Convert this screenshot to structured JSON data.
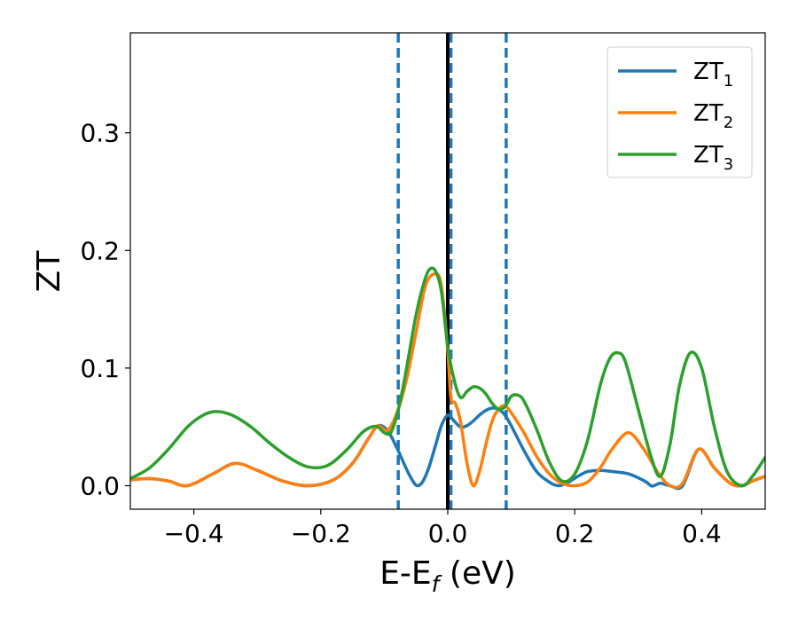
{
  "chart_data": {
    "type": "line",
    "xlabel": "E-E",
    "xlabel_sub": "f",
    "xlabel_unit": " (eV)",
    "ylabel": "ZT",
    "xlim": [
      -0.5,
      0.5
    ],
    "ylim": [
      -0.02,
      0.385
    ],
    "x_ticks": [
      -0.4,
      -0.2,
      0.0,
      0.2,
      0.4
    ],
    "x_tick_labels": [
      "−0.4",
      "−0.2",
      "0.0",
      "0.2",
      "0.4"
    ],
    "y_ticks": [
      0.0,
      0.1,
      0.2,
      0.3
    ],
    "y_tick_labels": [
      "0.0",
      "0.1",
      "0.2",
      "0.3"
    ],
    "grid": false,
    "legend_position": "top-right",
    "vertical_lines": [
      {
        "x": -0.078,
        "style": "dashed",
        "color": "#1f77b4"
      },
      {
        "x": 0.0,
        "style": "solid",
        "color": "#000000"
      },
      {
        "x": 0.005,
        "style": "dashed",
        "color": "#1f77b4"
      },
      {
        "x": 0.092,
        "style": "dashed",
        "color": "#1f77b4"
      }
    ],
    "series": [
      {
        "name": "ZT",
        "sub": "1",
        "color": "#1f77b4",
        "x": [
          -0.5,
          -0.47,
          -0.44,
          -0.41,
          -0.37,
          -0.335,
          -0.3,
          -0.26,
          -0.22,
          -0.18,
          -0.15,
          -0.125,
          -0.11,
          -0.095,
          -0.08,
          -0.065,
          -0.055,
          -0.048,
          -0.04,
          -0.03,
          -0.02,
          -0.01,
          0.0,
          0.01,
          0.02,
          0.03,
          0.04,
          0.05,
          0.06,
          0.07,
          0.08,
          0.09,
          0.1,
          0.12,
          0.14,
          0.16,
          0.175,
          0.19,
          0.205,
          0.22,
          0.24,
          0.26,
          0.285,
          0.31,
          0.32,
          0.325,
          0.335,
          0.35,
          0.37,
          0.395,
          0.42,
          0.445,
          0.463,
          0.48,
          0.5
        ],
        "y": [
          0.005,
          0.006,
          0.004,
          0.0,
          0.01,
          0.019,
          0.013,
          0.004,
          0.0,
          0.005,
          0.019,
          0.04,
          0.051,
          0.047,
          0.032,
          0.014,
          0.004,
          0.0,
          0.003,
          0.015,
          0.033,
          0.051,
          0.06,
          0.055,
          0.05,
          0.051,
          0.055,
          0.06,
          0.064,
          0.066,
          0.065,
          0.06,
          0.051,
          0.03,
          0.012,
          0.003,
          0.0,
          0.003,
          0.008,
          0.012,
          0.013,
          0.012,
          0.01,
          0.004,
          0.0,
          0.0,
          0.002,
          0.0,
          0.0,
          0.031,
          0.015,
          0.002,
          0.0,
          0.004,
          0.008
        ]
      },
      {
        "name": "ZT",
        "sub": "2",
        "color": "#ff7f0e",
        "x": [
          -0.5,
          -0.47,
          -0.44,
          -0.41,
          -0.37,
          -0.335,
          -0.3,
          -0.26,
          -0.22,
          -0.18,
          -0.15,
          -0.125,
          -0.11,
          -0.095,
          -0.08,
          -0.065,
          -0.05,
          -0.035,
          -0.02,
          -0.01,
          0.0,
          0.005,
          0.012,
          0.02,
          0.03,
          0.04,
          0.05,
          0.06,
          0.07,
          0.08,
          0.09,
          0.1,
          0.12,
          0.14,
          0.16,
          0.18,
          0.2,
          0.22,
          0.24,
          0.26,
          0.285,
          0.31,
          0.33,
          0.35,
          0.37,
          0.395,
          0.42,
          0.445,
          0.463,
          0.48,
          0.5
        ],
        "y": [
          0.005,
          0.006,
          0.004,
          0.0,
          0.01,
          0.019,
          0.013,
          0.004,
          0.0,
          0.005,
          0.019,
          0.04,
          0.051,
          0.047,
          0.062,
          0.09,
          0.13,
          0.17,
          0.18,
          0.17,
          0.115,
          0.075,
          0.07,
          0.055,
          0.02,
          0.0,
          0.012,
          0.035,
          0.055,
          0.065,
          0.068,
          0.062,
          0.045,
          0.025,
          0.01,
          0.002,
          0.0,
          0.003,
          0.015,
          0.032,
          0.045,
          0.03,
          0.012,
          0.0,
          0.002,
          0.031,
          0.015,
          0.002,
          0.0,
          0.004,
          0.008
        ]
      },
      {
        "name": "ZT",
        "sub": "3",
        "color": "#2ca02c",
        "x": [
          -0.5,
          -0.47,
          -0.44,
          -0.41,
          -0.385,
          -0.365,
          -0.34,
          -0.31,
          -0.28,
          -0.25,
          -0.22,
          -0.19,
          -0.16,
          -0.135,
          -0.12,
          -0.11,
          -0.1,
          -0.09,
          -0.08,
          -0.07,
          -0.06,
          -0.05,
          -0.04,
          -0.03,
          -0.02,
          -0.01,
          0.0,
          0.01,
          0.02,
          0.03,
          0.04,
          0.05,
          0.06,
          0.07,
          0.08,
          0.09,
          0.1,
          0.11,
          0.12,
          0.14,
          0.16,
          0.18,
          0.2,
          0.22,
          0.24,
          0.255,
          0.268,
          0.28,
          0.3,
          0.32,
          0.335,
          0.35,
          0.365,
          0.382,
          0.4,
          0.42,
          0.44,
          0.463,
          0.48,
          0.5
        ],
        "y": [
          0.006,
          0.015,
          0.031,
          0.05,
          0.06,
          0.063,
          0.06,
          0.05,
          0.036,
          0.024,
          0.016,
          0.017,
          0.03,
          0.045,
          0.05,
          0.05,
          0.045,
          0.045,
          0.06,
          0.085,
          0.115,
          0.145,
          0.168,
          0.183,
          0.183,
          0.165,
          0.118,
          0.09,
          0.075,
          0.08,
          0.084,
          0.083,
          0.078,
          0.07,
          0.065,
          0.067,
          0.076,
          0.077,
          0.072,
          0.048,
          0.02,
          0.004,
          0.01,
          0.038,
          0.085,
          0.108,
          0.113,
          0.105,
          0.065,
          0.025,
          0.008,
          0.035,
          0.085,
          0.113,
          0.1,
          0.05,
          0.012,
          0.0,
          0.008,
          0.024
        ]
      }
    ]
  }
}
